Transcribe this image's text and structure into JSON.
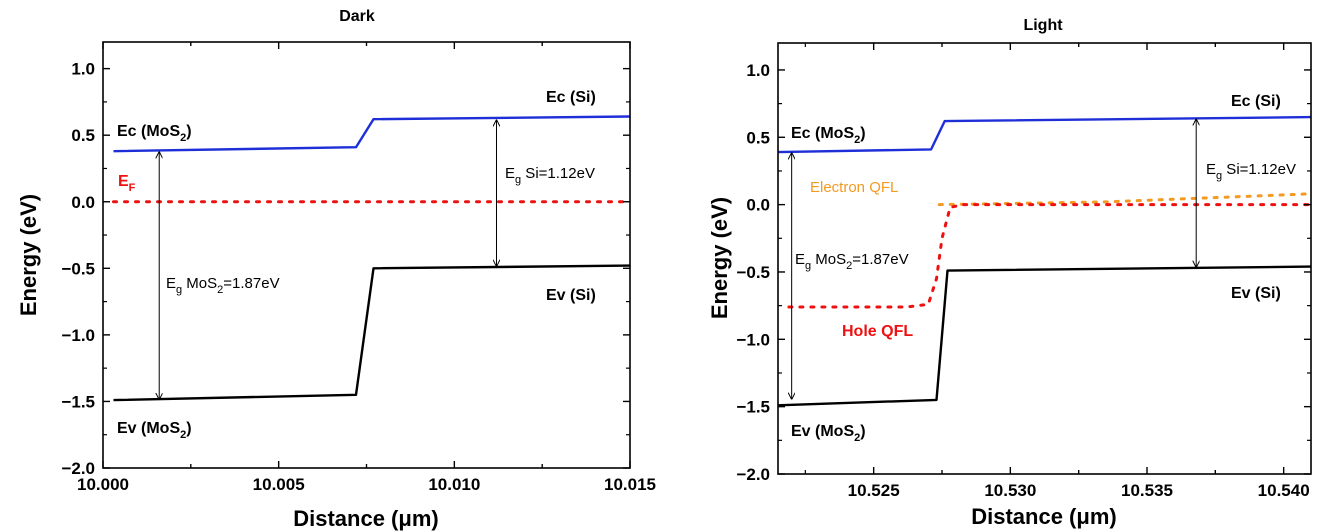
{
  "chart_data": [
    {
      "type": "line",
      "title": "Dark",
      "xlabel_prefix": "Distance (",
      "xlabel_unit": "μm",
      "xlabel_suffix": ")",
      "ylabel": "Energy (eV)",
      "xlim": [
        10.0,
        10.015
      ],
      "ylim": [
        -2.0,
        1.2
      ],
      "xticks": [
        "10.000",
        "10.005",
        "10.010",
        "10.015"
      ],
      "yticks": [
        "-2.0",
        "-1.5",
        "-1.0",
        "-0.5",
        "0.0",
        "0.5",
        "1.0"
      ],
      "series": [
        {
          "key": "ec",
          "color": "#1f2fd8",
          "style": "solid",
          "x": [
            10.0003,
            10.0072,
            10.0077,
            10.015
          ],
          "y": [
            0.38,
            0.41,
            0.62,
            0.64
          ]
        },
        {
          "key": "ev",
          "color": "#000000",
          "style": "solid",
          "x": [
            10.0003,
            10.0072,
            10.0077,
            10.015
          ],
          "y": [
            -1.49,
            -1.45,
            -0.5,
            -0.48
          ]
        },
        {
          "key": "ef",
          "color": "#ee1111",
          "style": "dotted",
          "x": [
            10.0003,
            10.015
          ],
          "y": [
            0.0,
            0.0
          ]
        }
      ],
      "arrows": [
        {
          "x": 10.0016,
          "y1": 0.38,
          "y2": -1.49
        },
        {
          "x": 10.0112,
          "y1": 0.62,
          "y2": -0.49
        }
      ],
      "annotations": {
        "ec_mos2_main": "Ec (MoS",
        "ec_mos2_sub": "2",
        "ec_mos2_end": ")",
        "ec_si": "Ec (Si)",
        "ef_main": "E",
        "ef_sub": "F",
        "eg_mos2_a": "E",
        "eg_mos2_b": "g",
        "eg_mos2_c": " MoS",
        "eg_mos2_d": "2",
        "eg_mos2_e": "=1.87eV",
        "eg_si_a": "E",
        "eg_si_b": "g",
        "eg_si_c": " Si=1.12eV",
        "ev_si": "Ev (Si)",
        "ev_mos2_main": "Ev (MoS",
        "ev_mos2_sub": "2",
        "ev_mos2_end": ")"
      }
    },
    {
      "type": "line",
      "title": "Light",
      "xlabel_prefix": "Distance (",
      "xlabel_unit": "μm",
      "xlabel_suffix": ")",
      "ylabel": "Energy (eV)",
      "xlim": [
        10.5215,
        10.541
      ],
      "ylim": [
        -2.0,
        1.2
      ],
      "xticks": [
        "10.525",
        "10.530",
        "10.535",
        "10.540"
      ],
      "yticks": [
        "-2.0",
        "-1.5",
        "-1.0",
        "-0.5",
        "0.0",
        "0.5",
        "1.0"
      ],
      "series": [
        {
          "key": "ec",
          "color": "#1f2fd8",
          "style": "solid",
          "x": [
            10.5215,
            10.5271,
            10.5276,
            10.541
          ],
          "y": [
            0.39,
            0.41,
            0.62,
            0.65
          ]
        },
        {
          "key": "ev",
          "color": "#000000",
          "style": "solid",
          "x": [
            10.5215,
            10.5273,
            10.5277,
            10.541
          ],
          "y": [
            -1.49,
            -1.45,
            -0.49,
            -0.46
          ]
        },
        {
          "key": "electron_qfl",
          "color": "#f39a22",
          "style": "dotted",
          "x": [
            10.5274,
            10.5335,
            10.541
          ],
          "y": [
            0.0,
            0.02,
            0.08
          ]
        },
        {
          "key": "hole_qfl",
          "color": "#ee1111",
          "style": "dotted",
          "x": [
            10.5219,
            10.5262,
            10.527,
            10.5273,
            10.5275,
            10.5278,
            10.5283,
            10.541
          ],
          "y": [
            -0.76,
            -0.76,
            -0.74,
            -0.55,
            -0.25,
            -0.02,
            0.0,
            0.0
          ]
        }
      ],
      "arrows": [
        {
          "x": 10.522,
          "y1": 0.39,
          "y2": -1.45
        },
        {
          "x": 10.5368,
          "y1": 0.64,
          "y2": -0.47
        }
      ],
      "annotations": {
        "ec_mos2_main": "Ec (MoS",
        "ec_mos2_sub": "2",
        "ec_mos2_end": ")",
        "ec_si": "Ec (Si)",
        "electron_qfl": "Electron QFL",
        "hole_qfl": "Hole QFL",
        "eg_mos2_a": "E",
        "eg_mos2_b": "g",
        "eg_mos2_c": " MoS",
        "eg_mos2_d": "2",
        "eg_mos2_e": "=1.87eV",
        "eg_si_a": "E",
        "eg_si_b": "g",
        "eg_si_c": " Si=1.12eV",
        "ev_si": "Ev (Si)",
        "ev_mos2_main": "Ev (MoS",
        "ev_mos2_sub": "2",
        "ev_mos2_end": ")"
      }
    }
  ],
  "colors": {
    "conduction_band": "#1f2fd8",
    "fermi_level": "#ee1111",
    "electron_qfl": "#f39a22",
    "axes": "#000000"
  }
}
